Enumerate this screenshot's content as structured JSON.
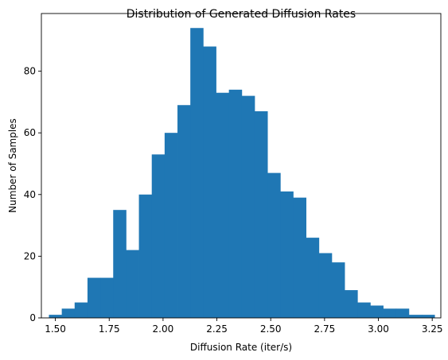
{
  "chart_data": {
    "type": "bar",
    "title": "Distribution of Generated Diffusion Rates",
    "xlabel": "Diffusion Rate (iter/s)",
    "ylabel": "Number of Samples",
    "xlim": [
      1.435,
      3.29
    ],
    "ylim": [
      0,
      98.7
    ],
    "grid": false,
    "bar_color": "#1f77b4",
    "bin_width": 0.0597,
    "bin_starts": [
      1.47,
      1.5297,
      1.5894,
      1.6491,
      1.7088,
      1.7685,
      1.8282,
      1.8879,
      1.9476,
      2.0073,
      2.067,
      2.1267,
      2.1864,
      2.2461,
      2.3058,
      2.3655,
      2.4252,
      2.4849,
      2.5446,
      2.6043,
      2.664,
      2.7237,
      2.7834,
      2.8431,
      2.9028,
      2.9625,
      3.0222,
      3.0819,
      3.1416,
      3.2013
    ],
    "counts": [
      1,
      3,
      5,
      13,
      13,
      35,
      22,
      40,
      53,
      60,
      69,
      94,
      88,
      73,
      74,
      72,
      67,
      47,
      41,
      39,
      26,
      21,
      18,
      9,
      5,
      4,
      3,
      3,
      1,
      1
    ],
    "x_ticks": [
      1.5,
      1.75,
      2.0,
      2.25,
      2.5,
      2.75,
      3.0,
      3.25
    ],
    "x_tick_labels": [
      "1.50",
      "1.75",
      "2.00",
      "2.25",
      "2.50",
      "2.75",
      "3.00",
      "3.25"
    ],
    "y_ticks": [
      0,
      20,
      40,
      60,
      80
    ],
    "y_tick_labels": [
      "0",
      "20",
      "40",
      "60",
      "80"
    ]
  }
}
